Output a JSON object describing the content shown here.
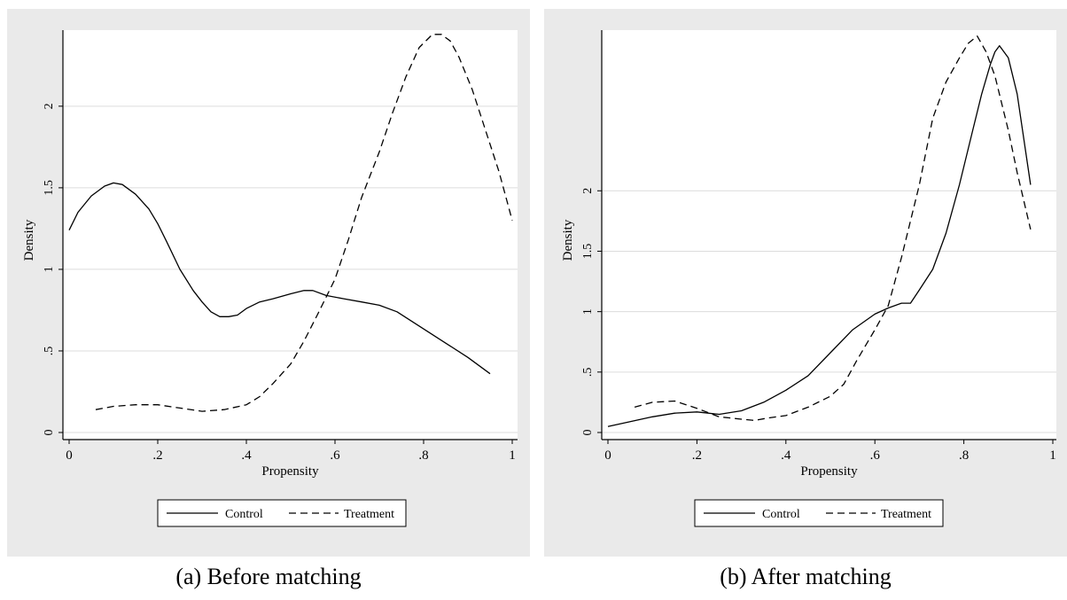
{
  "figure": {
    "captions": [
      "(a) Before matching",
      "(b) After matching"
    ]
  },
  "chart_data": [
    {
      "type": "line",
      "xlabel": "Propensity",
      "ylabel": "Density",
      "xlim": [
        0,
        1
      ],
      "ylim": [
        0,
        2.45
      ],
      "xticks": [
        "0",
        ".2",
        ".4",
        ".6",
        ".8",
        "1"
      ],
      "yticks": [
        "0",
        ".5",
        "1",
        "1.5",
        "2"
      ],
      "grid": true,
      "legend_position": "bottom",
      "series": [
        {
          "name": "Control",
          "style": "solid",
          "x": [
            0,
            0.02,
            0.05,
            0.08,
            0.1,
            0.12,
            0.15,
            0.18,
            0.2,
            0.22,
            0.25,
            0.28,
            0.3,
            0.32,
            0.34,
            0.36,
            0.38,
            0.4,
            0.43,
            0.46,
            0.5,
            0.53,
            0.55,
            0.58,
            0.62,
            0.66,
            0.7,
            0.74,
            0.78,
            0.82,
            0.86,
            0.9,
            0.95
          ],
          "y": [
            1.24,
            1.35,
            1.45,
            1.51,
            1.53,
            1.52,
            1.46,
            1.37,
            1.28,
            1.17,
            1.0,
            0.87,
            0.8,
            0.74,
            0.71,
            0.71,
            0.72,
            0.76,
            0.8,
            0.82,
            0.85,
            0.87,
            0.87,
            0.84,
            0.82,
            0.8,
            0.78,
            0.74,
            0.67,
            0.6,
            0.53,
            0.46,
            0.36
          ]
        },
        {
          "name": "Treatment",
          "style": "dashed",
          "x": [
            0.06,
            0.1,
            0.15,
            0.2,
            0.25,
            0.3,
            0.35,
            0.4,
            0.43,
            0.46,
            0.5,
            0.53,
            0.56,
            0.6,
            0.63,
            0.66,
            0.7,
            0.73,
            0.76,
            0.79,
            0.82,
            0.84,
            0.86,
            0.88,
            0.91,
            0.94,
            0.97,
            1.0
          ],
          "y": [
            0.14,
            0.16,
            0.17,
            0.17,
            0.15,
            0.13,
            0.14,
            0.17,
            0.22,
            0.3,
            0.42,
            0.56,
            0.72,
            0.94,
            1.18,
            1.44,
            1.72,
            1.96,
            2.18,
            2.36,
            2.44,
            2.44,
            2.4,
            2.3,
            2.1,
            1.85,
            1.6,
            1.3
          ]
        }
      ]
    },
    {
      "type": "line",
      "xlabel": "Propensity",
      "ylabel": "Density",
      "xlim": [
        0,
        1
      ],
      "ylim": [
        0,
        3.3
      ],
      "xticks": [
        "0",
        ".2",
        ".4",
        ".6",
        ".8",
        "1"
      ],
      "yticks": [
        "0",
        ".5",
        "1",
        "1.5",
        "2"
      ],
      "grid": true,
      "legend_position": "bottom",
      "series": [
        {
          "name": "Control",
          "style": "solid",
          "x": [
            0,
            0.05,
            0.1,
            0.15,
            0.2,
            0.25,
            0.3,
            0.35,
            0.4,
            0.45,
            0.5,
            0.55,
            0.6,
            0.63,
            0.66,
            0.68,
            0.7,
            0.73,
            0.76,
            0.79,
            0.82,
            0.84,
            0.86,
            0.87,
            0.88,
            0.9,
            0.92,
            0.95
          ],
          "y": [
            0.05,
            0.09,
            0.13,
            0.16,
            0.17,
            0.15,
            0.18,
            0.25,
            0.35,
            0.47,
            0.66,
            0.85,
            0.98,
            1.03,
            1.07,
            1.07,
            1.18,
            1.35,
            1.65,
            2.05,
            2.5,
            2.8,
            3.05,
            3.15,
            3.2,
            3.1,
            2.8,
            2.05
          ]
        },
        {
          "name": "Treatment",
          "style": "dashed",
          "x": [
            0.06,
            0.1,
            0.15,
            0.2,
            0.25,
            0.3,
            0.33,
            0.36,
            0.4,
            0.45,
            0.5,
            0.53,
            0.56,
            0.6,
            0.63,
            0.66,
            0.7,
            0.73,
            0.76,
            0.79,
            0.81,
            0.83,
            0.85,
            0.87,
            0.9,
            0.92,
            0.95
          ],
          "y": [
            0.21,
            0.25,
            0.26,
            0.2,
            0.13,
            0.11,
            0.1,
            0.12,
            0.14,
            0.21,
            0.3,
            0.4,
            0.6,
            0.85,
            1.05,
            1.45,
            2.05,
            2.6,
            2.9,
            3.1,
            3.22,
            3.28,
            3.15,
            2.95,
            2.5,
            2.15,
            1.68
          ]
        }
      ]
    }
  ]
}
